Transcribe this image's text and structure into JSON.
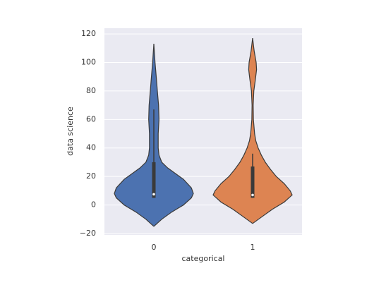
{
  "chart_data": {
    "type": "violin",
    "xlabel": "categorical",
    "ylabel": "data science",
    "categories": [
      "0",
      "1"
    ],
    "ylim": [
      -21,
      124
    ],
    "yticks": [
      {
        "value": -20,
        "label": "−20"
      },
      0,
      20,
      40,
      60,
      80,
      100,
      120
    ],
    "grid": true,
    "violins": [
      {
        "color": "#4c72b0",
        "y": [
          -15,
          -10,
          -5,
          0,
          5,
          8,
          12,
          18,
          22,
          26,
          30,
          35,
          40,
          50,
          60,
          70,
          80,
          90,
          100,
          113
        ],
        "density": [
          0,
          0.2,
          0.45,
          0.75,
          0.95,
          1.0,
          0.95,
          0.75,
          0.55,
          0.35,
          0.2,
          0.13,
          0.11,
          0.11,
          0.13,
          0.12,
          0.09,
          0.06,
          0.03,
          0
        ],
        "whislo": 5,
        "q1": 5,
        "median": 7.5,
        "q3": 30,
        "whishi": 67
      },
      {
        "color": "#dd8452",
        "y": [
          -13,
          -8,
          -3,
          2,
          7,
          10,
          15,
          20,
          25,
          30,
          35,
          40,
          45,
          50,
          60,
          70,
          80,
          88,
          95,
          100,
          108,
          117
        ],
        "density": [
          0,
          0.25,
          0.5,
          0.8,
          1.0,
          0.95,
          0.8,
          0.6,
          0.45,
          0.32,
          0.22,
          0.14,
          0.08,
          0.05,
          0.02,
          0.015,
          0.03,
          0.07,
          0.1,
          0.09,
          0.04,
          0
        ],
        "whislo": 5,
        "q1": 5,
        "median": 7,
        "q3": 27,
        "whishi": 36
      }
    ]
  }
}
